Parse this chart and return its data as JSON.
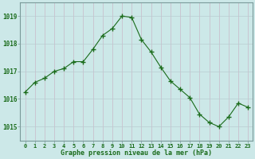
{
  "x": [
    0,
    1,
    2,
    3,
    4,
    5,
    6,
    7,
    8,
    9,
    10,
    11,
    12,
    13,
    14,
    15,
    16,
    17,
    18,
    19,
    20,
    21,
    22,
    23
  ],
  "y": [
    1016.25,
    1016.6,
    1016.75,
    1017.0,
    1017.1,
    1017.35,
    1017.35,
    1017.8,
    1018.3,
    1018.55,
    1019.0,
    1018.95,
    1018.15,
    1017.7,
    1017.15,
    1016.65,
    1016.35,
    1016.05,
    1015.45,
    1015.15,
    1015.0,
    1015.35,
    1015.85,
    1015.7
  ],
  "line_color": "#1a6b1a",
  "marker": "+",
  "marker_size": 4,
  "bg_color": "#cce8e8",
  "grid_color_v": "#c8b8c8",
  "grid_color_h": "#b8ccd0",
  "xlabel": "Graphe pression niveau de la mer (hPa)",
  "xlabel_color": "#1a6b1a",
  "tick_label_color": "#1a6b1a",
  "ylim": [
    1014.5,
    1019.5
  ],
  "xlim": [
    -0.5,
    23.5
  ],
  "yticks": [
    1015,
    1016,
    1017,
    1018,
    1019
  ],
  "xticks": [
    0,
    1,
    2,
    3,
    4,
    5,
    6,
    7,
    8,
    9,
    10,
    11,
    12,
    13,
    14,
    15,
    16,
    17,
    18,
    19,
    20,
    21,
    22,
    23
  ],
  "spine_color": "#7a9a9a"
}
